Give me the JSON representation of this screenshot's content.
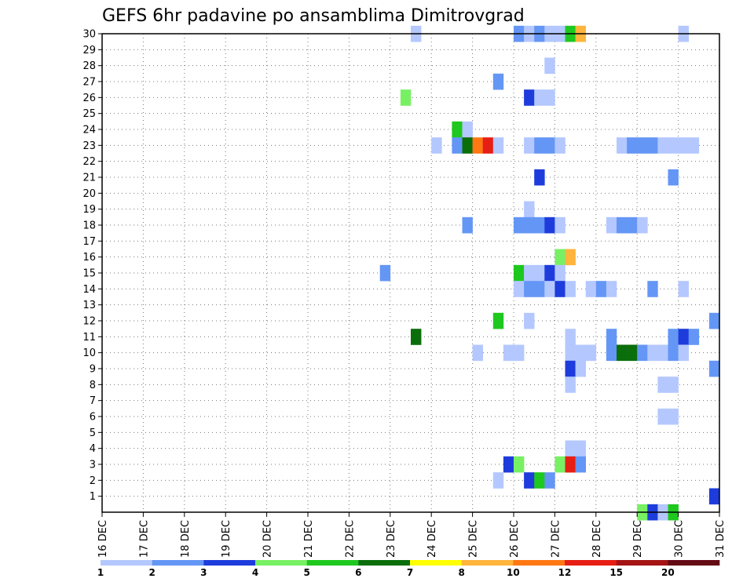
{
  "chart_data": {
    "type": "heatmap",
    "title": "GEFS 6hr padavine po ansamblima Dimitrovgrad",
    "x_ticks": [
      "16 DEC",
      "17 DEC",
      "18 DEC",
      "19 DEC",
      "20 DEC",
      "21 DEC",
      "22 DEC",
      "23 DEC",
      "24 DEC",
      "25 DEC",
      "26 DEC",
      "27 DEC",
      "28 DEC",
      "29 DEC",
      "30 DEC",
      "31 DEC"
    ],
    "x_range_days": [
      16,
      31
    ],
    "y_ticks": [
      1,
      2,
      3,
      4,
      5,
      6,
      7,
      8,
      9,
      10,
      11,
      12,
      13,
      14,
      15,
      16,
      17,
      18,
      19,
      20,
      21,
      22,
      23,
      24,
      25,
      26,
      27,
      28,
      29,
      30
    ],
    "y_range": [
      0,
      30
    ],
    "grid": true,
    "colorbar": {
      "labels": [
        "1",
        "2",
        "3",
        "4",
        "5",
        "6",
        "7",
        "8",
        "10",
        "12",
        "15",
        "20"
      ],
      "colors": [
        "#b4c8ff",
        "#6496f5",
        "#1e3cdc",
        "#78f064",
        "#1ec81e",
        "#0a6e0a",
        "#ffff00",
        "#ffb43c",
        "#ff7814",
        "#e61e14",
        "#a51414",
        "#640a14"
      ]
    },
    "cells": [
      {
        "t": 23.5,
        "m": 30,
        "v": 1
      },
      {
        "t": 26.0,
        "m": 30,
        "v": 2
      },
      {
        "t": 26.25,
        "m": 30,
        "v": 1
      },
      {
        "t": 26.5,
        "m": 30,
        "v": 2
      },
      {
        "t": 26.75,
        "m": 30,
        "v": 1
      },
      {
        "t": 27.0,
        "m": 30,
        "v": 1
      },
      {
        "t": 27.25,
        "m": 30,
        "v": 5
      },
      {
        "t": 27.5,
        "m": 30,
        "v": 8
      },
      {
        "t": 30.0,
        "m": 30,
        "v": 1
      },
      {
        "t": 26.75,
        "m": 28,
        "v": 1
      },
      {
        "t": 25.5,
        "m": 27,
        "v": 2
      },
      {
        "t": 23.25,
        "m": 26,
        "v": 4
      },
      {
        "t": 26.25,
        "m": 26,
        "v": 3
      },
      {
        "t": 26.5,
        "m": 26,
        "v": 1
      },
      {
        "t": 26.75,
        "m": 26,
        "v": 1
      },
      {
        "t": 24.5,
        "m": 24,
        "v": 5
      },
      {
        "t": 24.75,
        "m": 24,
        "v": 1
      },
      {
        "t": 24.0,
        "m": 23,
        "v": 1
      },
      {
        "t": 24.5,
        "m": 23,
        "v": 2
      },
      {
        "t": 24.75,
        "m": 23,
        "v": 6
      },
      {
        "t": 25.0,
        "m": 23,
        "v": 9
      },
      {
        "t": 25.25,
        "m": 23,
        "v": 10
      },
      {
        "t": 25.5,
        "m": 23,
        "v": 1
      },
      {
        "t": 26.25,
        "m": 23,
        "v": 1
      },
      {
        "t": 26.5,
        "m": 23,
        "v": 2
      },
      {
        "t": 26.75,
        "m": 23,
        "v": 2
      },
      {
        "t": 27.0,
        "m": 23,
        "v": 1
      },
      {
        "t": 28.5,
        "m": 23,
        "v": 1
      },
      {
        "t": 28.75,
        "m": 23,
        "v": 2
      },
      {
        "t": 29.0,
        "m": 23,
        "v": 2
      },
      {
        "t": 29.25,
        "m": 23,
        "v": 2
      },
      {
        "t": 29.5,
        "m": 23,
        "v": 1
      },
      {
        "t": 29.75,
        "m": 23,
        "v": 1
      },
      {
        "t": 30.0,
        "m": 23,
        "v": 1
      },
      {
        "t": 30.25,
        "m": 23,
        "v": 1
      },
      {
        "t": 26.5,
        "m": 21,
        "v": 3
      },
      {
        "t": 29.75,
        "m": 21,
        "v": 2
      },
      {
        "t": 26.25,
        "m": 19,
        "v": 1
      },
      {
        "t": 24.75,
        "m": 18,
        "v": 2
      },
      {
        "t": 26.0,
        "m": 18,
        "v": 2
      },
      {
        "t": 26.25,
        "m": 18,
        "v": 2
      },
      {
        "t": 26.5,
        "m": 18,
        "v": 2
      },
      {
        "t": 26.75,
        "m": 18,
        "v": 3
      },
      {
        "t": 27.0,
        "m": 18,
        "v": 1
      },
      {
        "t": 28.25,
        "m": 18,
        "v": 1
      },
      {
        "t": 28.5,
        "m": 18,
        "v": 2
      },
      {
        "t": 28.75,
        "m": 18,
        "v": 2
      },
      {
        "t": 29.0,
        "m": 18,
        "v": 1
      },
      {
        "t": 27.0,
        "m": 16,
        "v": 4
      },
      {
        "t": 27.25,
        "m": 16,
        "v": 8
      },
      {
        "t": 22.75,
        "m": 15,
        "v": 2
      },
      {
        "t": 26.0,
        "m": 15,
        "v": 5
      },
      {
        "t": 26.25,
        "m": 15,
        "v": 1
      },
      {
        "t": 26.5,
        "m": 15,
        "v": 1
      },
      {
        "t": 26.75,
        "m": 15,
        "v": 3
      },
      {
        "t": 27.0,
        "m": 15,
        "v": 1
      },
      {
        "t": 26.0,
        "m": 14,
        "v": 1
      },
      {
        "t": 26.25,
        "m": 14,
        "v": 2
      },
      {
        "t": 26.5,
        "m": 14,
        "v": 2
      },
      {
        "t": 26.75,
        "m": 14,
        "v": 1
      },
      {
        "t": 27.0,
        "m": 14,
        "v": 3
      },
      {
        "t": 27.25,
        "m": 14,
        "v": 1
      },
      {
        "t": 27.75,
        "m": 14,
        "v": 1
      },
      {
        "t": 28.0,
        "m": 14,
        "v": 2
      },
      {
        "t": 28.25,
        "m": 14,
        "v": 1
      },
      {
        "t": 29.25,
        "m": 14,
        "v": 2
      },
      {
        "t": 30.0,
        "m": 14,
        "v": 1
      },
      {
        "t": 25.5,
        "m": 12,
        "v": 5
      },
      {
        "t": 26.25,
        "m": 12,
        "v": 1
      },
      {
        "t": 30.75,
        "m": 12,
        "v": 2
      },
      {
        "t": 23.5,
        "m": 11,
        "v": 6
      },
      {
        "t": 27.25,
        "m": 11,
        "v": 1
      },
      {
        "t": 28.25,
        "m": 11,
        "v": 2
      },
      {
        "t": 29.75,
        "m": 11,
        "v": 2
      },
      {
        "t": 30.0,
        "m": 11,
        "v": 3
      },
      {
        "t": 30.25,
        "m": 11,
        "v": 2
      },
      {
        "t": 25.0,
        "m": 10,
        "v": 1
      },
      {
        "t": 25.75,
        "m": 10,
        "v": 1
      },
      {
        "t": 26.0,
        "m": 10,
        "v": 1
      },
      {
        "t": 27.25,
        "m": 10,
        "v": 1
      },
      {
        "t": 27.5,
        "m": 10,
        "v": 1
      },
      {
        "t": 27.75,
        "m": 10,
        "v": 1
      },
      {
        "t": 28.25,
        "m": 10,
        "v": 2
      },
      {
        "t": 28.5,
        "m": 10,
        "v": 6
      },
      {
        "t": 28.75,
        "m": 10,
        "v": 6
      },
      {
        "t": 29.0,
        "m": 10,
        "v": 2
      },
      {
        "t": 29.25,
        "m": 10,
        "v": 1
      },
      {
        "t": 29.5,
        "m": 10,
        "v": 1
      },
      {
        "t": 29.75,
        "m": 10,
        "v": 2
      },
      {
        "t": 30.0,
        "m": 10,
        "v": 1
      },
      {
        "t": 27.25,
        "m": 9,
        "v": 3
      },
      {
        "t": 27.5,
        "m": 9,
        "v": 1
      },
      {
        "t": 30.75,
        "m": 9,
        "v": 2
      },
      {
        "t": 27.25,
        "m": 8,
        "v": 1
      },
      {
        "t": 29.5,
        "m": 8,
        "v": 1
      },
      {
        "t": 29.75,
        "m": 8,
        "v": 1
      },
      {
        "t": 29.5,
        "m": 6,
        "v": 1
      },
      {
        "t": 29.75,
        "m": 6,
        "v": 1
      },
      {
        "t": 27.25,
        "m": 4,
        "v": 1
      },
      {
        "t": 27.5,
        "m": 4,
        "v": 1
      },
      {
        "t": 25.75,
        "m": 3,
        "v": 3
      },
      {
        "t": 26.0,
        "m": 3,
        "v": 4
      },
      {
        "t": 27.0,
        "m": 3,
        "v": 4
      },
      {
        "t": 27.25,
        "m": 3,
        "v": 10
      },
      {
        "t": 27.5,
        "m": 3,
        "v": 2
      },
      {
        "t": 25.5,
        "m": 2,
        "v": 1
      },
      {
        "t": 26.25,
        "m": 2,
        "v": 3
      },
      {
        "t": 26.5,
        "m": 2,
        "v": 5
      },
      {
        "t": 26.75,
        "m": 2,
        "v": 2
      },
      {
        "t": 30.75,
        "m": 1,
        "v": 3
      },
      {
        "t": 29.0,
        "m": 0,
        "v": 4
      },
      {
        "t": 29.25,
        "m": 0,
        "v": 3
      },
      {
        "t": 29.5,
        "m": 0,
        "v": 1
      },
      {
        "t": 29.75,
        "m": 0,
        "v": 5
      }
    ]
  }
}
